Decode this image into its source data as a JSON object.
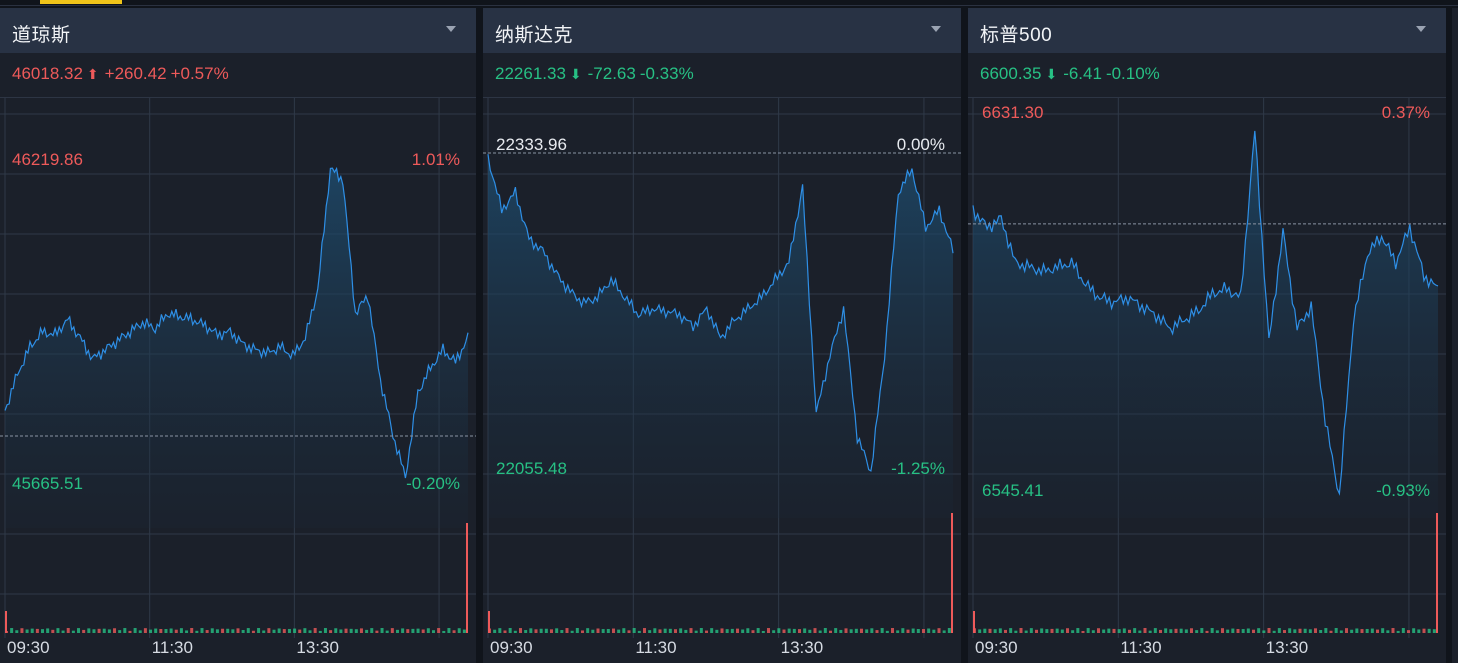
{
  "colors": {
    "up": "#ee5a5a",
    "down": "#27c084",
    "line": "#2e8fe6",
    "grid": "#2f3948",
    "ref": "#8a93a3"
  },
  "panels": [
    {
      "title": "道琼斯",
      "quote": {
        "price": "46018.32",
        "arrow": "⬆",
        "change": "+260.42",
        "pct": "+0.57%",
        "dir": "up"
      },
      "top_price": "46219.86",
      "top_pct": "1.01%",
      "top_price_dir": "up",
      "top_pct_dir": "up",
      "bottom_price": "45665.51",
      "bottom_pct": "-0.20%",
      "ref_price": "",
      "ref_pct": "",
      "time_labels": [
        "09:30",
        "11:30",
        "13:30"
      ]
    },
    {
      "title": "纳斯达克",
      "quote": {
        "price": "22261.33",
        "arrow": "⬇",
        "change": "-72.63",
        "pct": "-0.33%",
        "dir": "down"
      },
      "top_price": "",
      "top_pct": "",
      "top_price_dir": "up",
      "top_pct_dir": "up",
      "bottom_price": "22055.48",
      "bottom_pct": "-1.25%",
      "ref_price": "22333.96",
      "ref_pct": "0.00%",
      "time_labels": [
        "09:30",
        "11:30",
        "13:30"
      ]
    },
    {
      "title": "标普500",
      "quote": {
        "price": "6600.35",
        "arrow": "⬇",
        "change": "-6.41",
        "pct": "-0.10%",
        "dir": "down"
      },
      "top_price": "6631.30",
      "top_pct": "0.37%",
      "top_price_dir": "up",
      "top_pct_dir": "up",
      "bottom_price": "6545.41",
      "bottom_pct": "-0.93%",
      "ref_price": "",
      "ref_pct": "",
      "time_labels": [
        "09:30",
        "11:30",
        "13:30"
      ]
    }
  ],
  "chart_data": [
    {
      "type": "line",
      "title": "道琼斯",
      "ylim": [
        45665.51,
        46219.86
      ],
      "prev_close": 45757.9,
      "x_ticks": [
        "09:30",
        "11:30",
        "13:30"
      ],
      "series": [
        {
          "values": [
            45800,
            45860,
            45905,
            45930,
            45925,
            45950,
            45920,
            45885,
            45900,
            45915,
            45930,
            45945,
            45935,
            45960,
            45955,
            45950,
            45940,
            45925,
            45930,
            45910,
            45900,
            45895,
            45905,
            45890,
            45920,
            46000,
            46200,
            46180,
            45960,
            45990,
            45850,
            45760,
            45690,
            45830,
            45870,
            45900,
            45880,
            45920
          ]
        }
      ]
    },
    {
      "type": "line",
      "title": "纳斯达克",
      "ylim": [
        22055.48,
        22333.96
      ],
      "prev_close": 22333.96,
      "x_ticks": [
        "09:30",
        "11:30",
        "13:30"
      ],
      "series": [
        {
          "values": [
            22330,
            22285,
            22300,
            22260,
            22250,
            22230,
            22215,
            22205,
            22210,
            22225,
            22210,
            22195,
            22200,
            22198,
            22195,
            22185,
            22200,
            22175,
            22190,
            22200,
            22210,
            22225,
            22240,
            22305,
            22110,
            22160,
            22200,
            22090,
            22060,
            22160,
            22300,
            22320,
            22270,
            22285,
            22250
          ]
        }
      ]
    },
    {
      "type": "line",
      "title": "标普500",
      "ylim": [
        6545.41,
        6631.3
      ],
      "prev_close": 6606.8,
      "x_ticks": [
        "09:30",
        "11:30",
        "13:30"
      ],
      "series": [
        {
          "values": [
            6610,
            6606,
            6608,
            6598,
            6597,
            6596,
            6597,
            6598,
            6593,
            6590,
            6589,
            6590,
            6588,
            6586,
            6583,
            6585,
            6587,
            6591,
            6592,
            6590,
            6628,
            6580,
            6605,
            6583,
            6588,
            6562,
            6545,
            6585,
            6600,
            6604,
            6598,
            6606,
            6595,
            6592
          ]
        }
      ]
    }
  ]
}
